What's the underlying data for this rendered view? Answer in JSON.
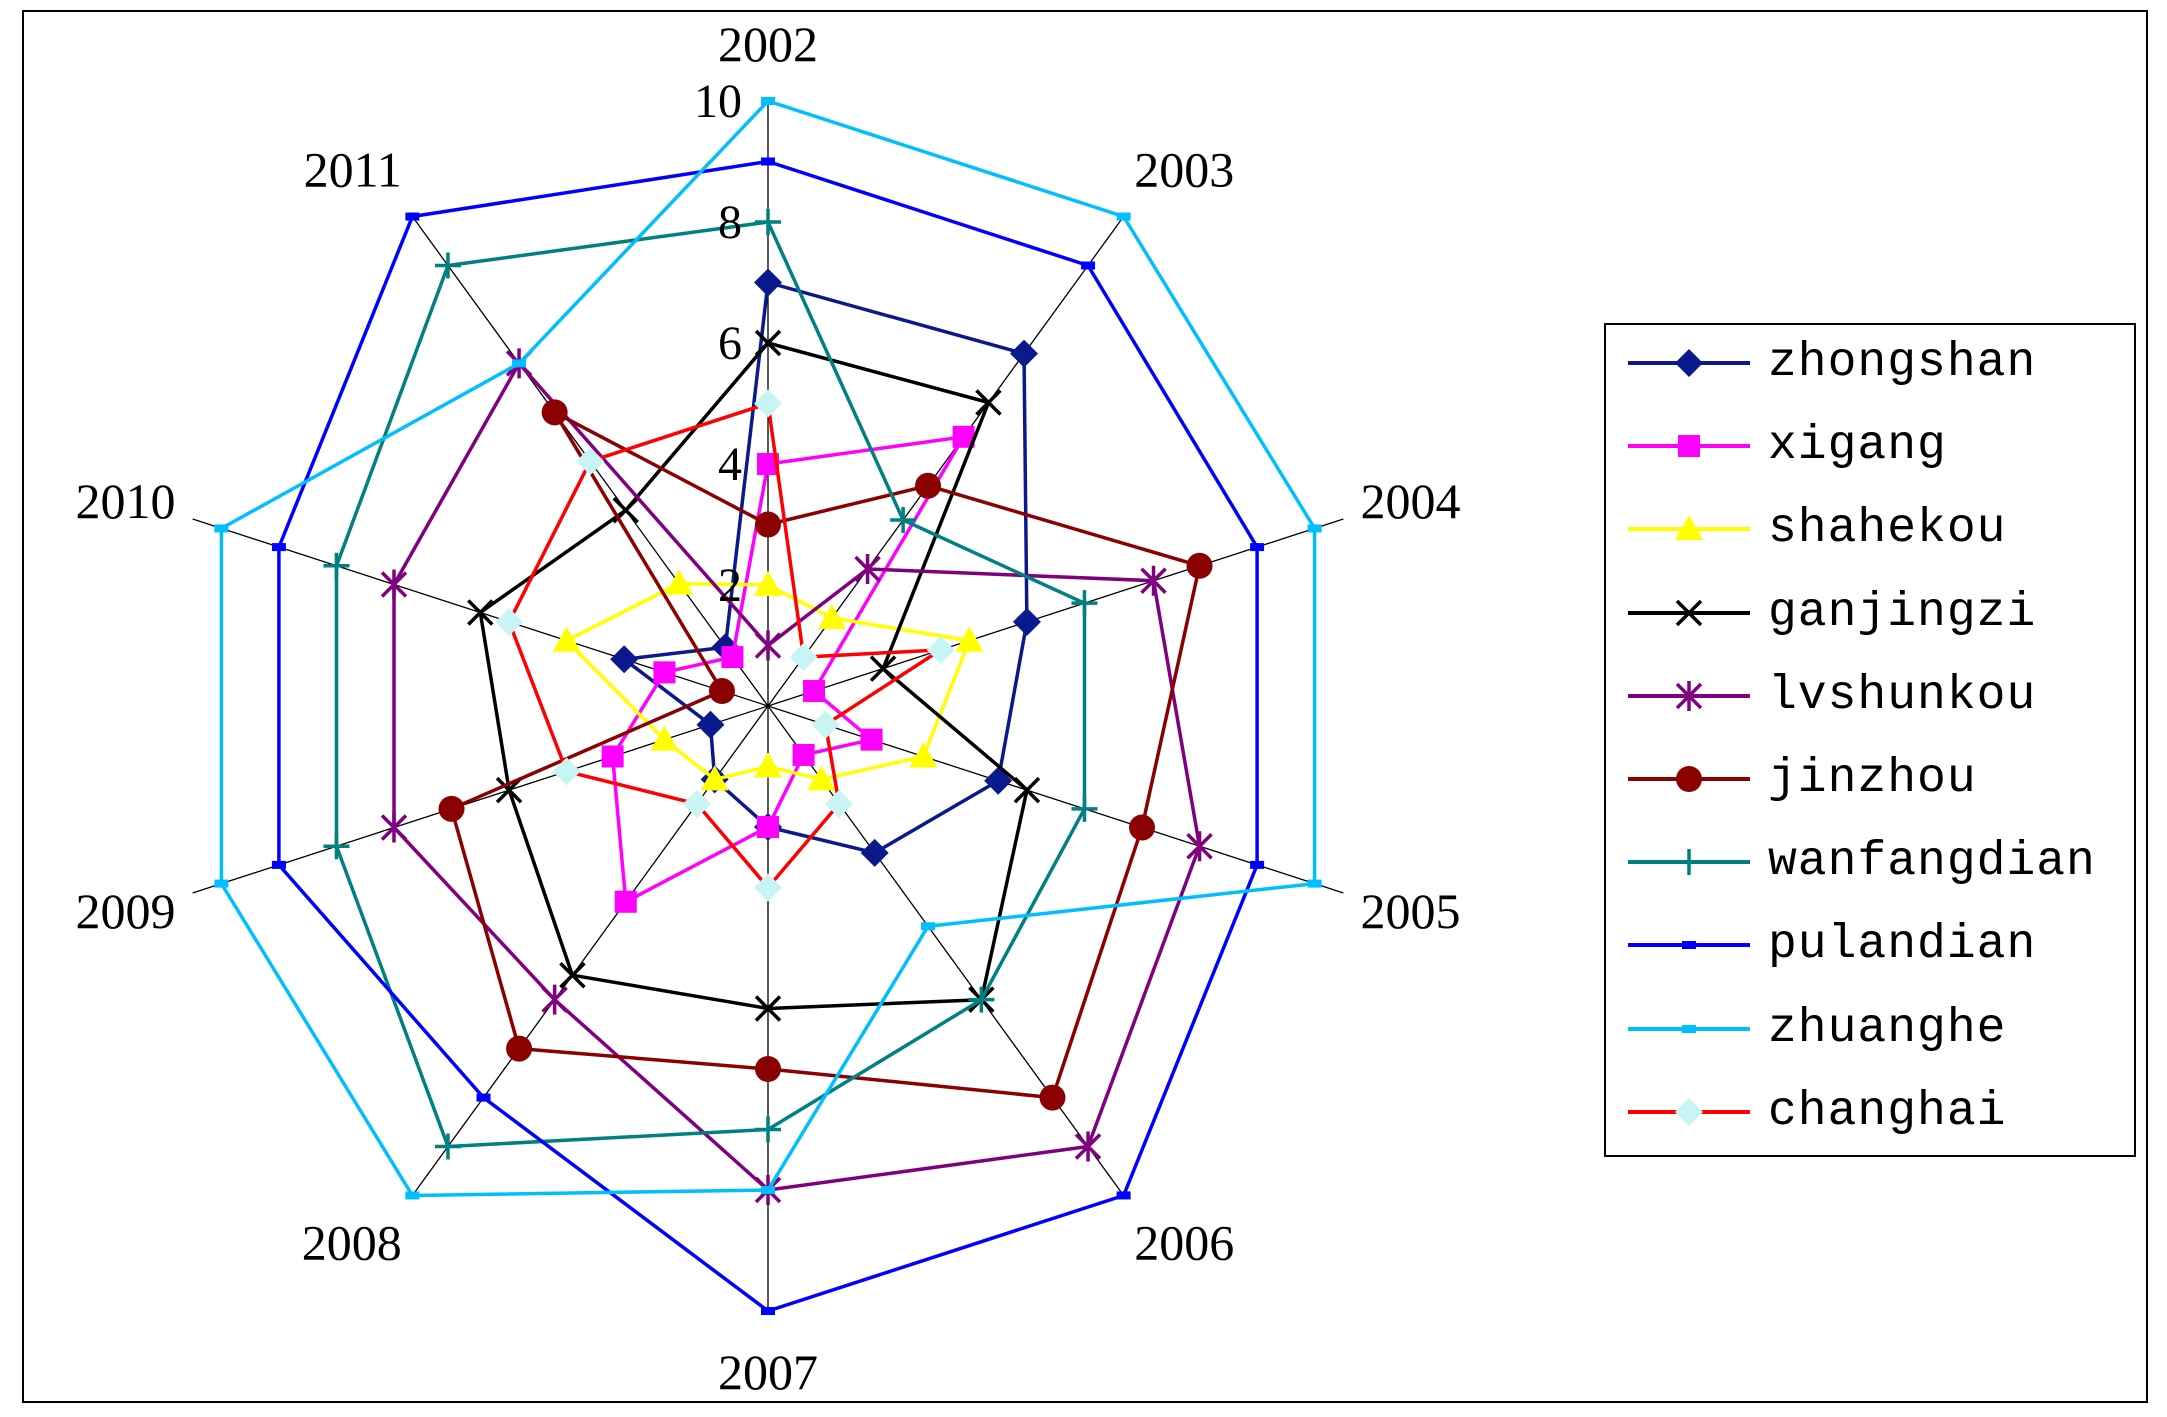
{
  "chart_data": {
    "type": "radar",
    "categories": [
      "2002",
      "2003",
      "2004",
      "2005",
      "2006",
      "2007",
      "2008",
      "2009",
      "2010",
      "2011"
    ],
    "rlim": [
      0,
      10
    ],
    "rticks": [
      "2",
      "4",
      "6",
      "8",
      "10"
    ],
    "grid": true,
    "legend_position": "right",
    "series": [
      {
        "name": "zhongshan",
        "color": "#0a1a8c",
        "marker": "diamond",
        "values": [
          7.0,
          7.2,
          4.5,
          4.0,
          3.0,
          2.0,
          1.5,
          1.0,
          2.5,
          1.2
        ]
      },
      {
        "name": "xigang",
        "color": "#ff00ff",
        "marker": "square",
        "values": [
          4.0,
          5.5,
          0.8,
          1.8,
          1.0,
          2.0,
          4.0,
          2.7,
          1.8,
          1.0
        ]
      },
      {
        "name": "shahekou",
        "color": "#ffff00",
        "marker": "triangle",
        "values": [
          2.0,
          1.8,
          3.5,
          2.7,
          1.5,
          1.0,
          1.5,
          1.8,
          3.5,
          2.5
        ]
      },
      {
        "name": "ganjingzi",
        "color": "#000000",
        "marker": "x",
        "values": [
          6.0,
          6.2,
          2.0,
          4.5,
          6.0,
          5.0,
          5.5,
          4.5,
          5.0,
          4.0
        ]
      },
      {
        "name": "lvshunkou",
        "color": "#800080",
        "marker": "star",
        "values": [
          1.0,
          2.8,
          6.7,
          7.5,
          9.0,
          8.0,
          6.0,
          6.5,
          6.5,
          7.0
        ]
      },
      {
        "name": "jinzhou",
        "color": "#8b0000",
        "marker": "circle",
        "values": [
          3.0,
          4.5,
          7.5,
          6.5,
          8.0,
          6.0,
          7.0,
          5.5,
          0.8,
          6.0
        ]
      },
      {
        "name": "wanfangdian",
        "color": "#008080",
        "marker": "plus",
        "values": [
          8.0,
          3.8,
          5.5,
          5.5,
          6.0,
          7.0,
          9.0,
          7.5,
          7.5,
          9.0
        ]
      },
      {
        "name": "pulandian",
        "color": "#0000ff",
        "marker": "dash",
        "values": [
          9.0,
          9.0,
          8.5,
          8.5,
          10.0,
          10.0,
          8.0,
          8.5,
          8.5,
          10.0
        ]
      },
      {
        "name": "zhuanghe",
        "color": "#00bfff",
        "marker": "dash",
        "values": [
          10.0,
          10.0,
          9.5,
          9.5,
          4.5,
          8.0,
          10.0,
          9.5,
          9.5,
          7.0
        ]
      },
      {
        "name": "changhai",
        "color": "#ff0000",
        "marker": "diamond-light",
        "values": [
          5.0,
          1.0,
          3.0,
          1.0,
          2.0,
          3.0,
          2.0,
          3.5,
          4.5,
          5.0
        ]
      }
    ]
  }
}
